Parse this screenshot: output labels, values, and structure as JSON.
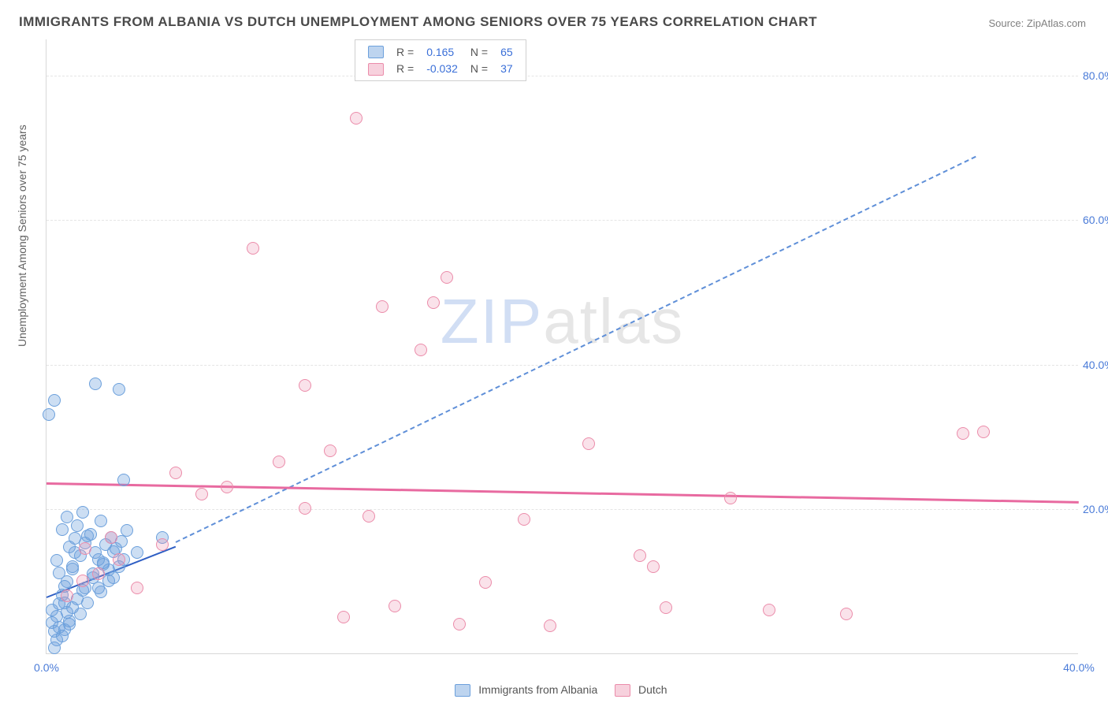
{
  "title": "IMMIGRANTS FROM ALBANIA VS DUTCH UNEMPLOYMENT AMONG SENIORS OVER 75 YEARS CORRELATION CHART",
  "source": "Source: ZipAtlas.com",
  "ylabel": "Unemployment Among Seniors over 75 years",
  "watermark_zip": "ZIP",
  "watermark_atlas": "atlas",
  "chart": {
    "type": "scatter",
    "background_color": "#ffffff",
    "grid_color": "#e5e5e5",
    "axis_color": "#d8d8d8",
    "tick_color": "#4a7bd8",
    "label_color": "#606060",
    "title_color": "#4a4a4a",
    "title_fontsize": 17,
    "label_fontsize": 14,
    "tick_fontsize": 14,
    "xlim": [
      0,
      40
    ],
    "ylim": [
      0,
      85
    ],
    "xticks": [
      0.0,
      40.0
    ],
    "xtick_labels": [
      "0.0%",
      "40.0%"
    ],
    "yticks": [
      20.0,
      40.0,
      60.0,
      80.0
    ],
    "ytick_labels": [
      "20.0%",
      "40.0%",
      "60.0%",
      "80.0%"
    ],
    "marker_radius": 8,
    "series": [
      {
        "name": "Immigrants from Albania",
        "key": "blue",
        "fill": "rgba(108,160,220,0.35)",
        "stroke": "#6ca0dc",
        "R": "0.165",
        "N": "65",
        "points": [
          [
            0.3,
            0.8
          ],
          [
            0.4,
            1.8
          ],
          [
            0.6,
            2.4
          ],
          [
            0.3,
            3.0
          ],
          [
            0.5,
            3.6
          ],
          [
            0.2,
            4.2
          ],
          [
            0.7,
            3.3
          ],
          [
            0.9,
            4.5
          ],
          [
            0.4,
            5.1
          ],
          [
            0.8,
            5.7
          ],
          [
            1.0,
            6.3
          ],
          [
            0.5,
            6.9
          ],
          [
            0.9,
            4.0
          ],
          [
            1.2,
            7.5
          ],
          [
            0.6,
            8.1
          ],
          [
            1.4,
            8.7
          ],
          [
            0.7,
            9.3
          ],
          [
            1.6,
            7.0
          ],
          [
            0.8,
            9.9
          ],
          [
            1.8,
            10.5
          ],
          [
            0.5,
            11.1
          ],
          [
            2.0,
            9.0
          ],
          [
            1.0,
            11.7
          ],
          [
            2.2,
            12.3
          ],
          [
            0.4,
            12.9
          ],
          [
            2.4,
            10.0
          ],
          [
            1.3,
            13.5
          ],
          [
            2.6,
            14.1
          ],
          [
            0.9,
            14.7
          ],
          [
            2.8,
            12.0
          ],
          [
            1.5,
            15.3
          ],
          [
            3.0,
            13.0
          ],
          [
            1.1,
            15.9
          ],
          [
            1.7,
            16.5
          ],
          [
            0.6,
            17.1
          ],
          [
            1.9,
            14.0
          ],
          [
            1.2,
            17.7
          ],
          [
            2.1,
            18.3
          ],
          [
            0.8,
            18.9
          ],
          [
            2.3,
            15.0
          ],
          [
            1.4,
            19.5
          ],
          [
            2.5,
            16.0
          ],
          [
            1.6,
            16.2
          ],
          [
            1.0,
            12.0
          ],
          [
            2.7,
            14.5
          ],
          [
            1.8,
            11.0
          ],
          [
            2.0,
            13.0
          ],
          [
            2.9,
            15.5
          ],
          [
            2.2,
            12.5
          ],
          [
            3.1,
            17.0
          ],
          [
            2.4,
            11.5
          ],
          [
            3.5,
            14.0
          ],
          [
            2.6,
            10.5
          ],
          [
            4.5,
            16.0
          ],
          [
            0.1,
            33.0
          ],
          [
            3.0,
            24.0
          ],
          [
            2.8,
            36.5
          ],
          [
            1.9,
            37.3
          ],
          [
            0.3,
            35.0
          ],
          [
            1.1,
            14.0
          ],
          [
            1.5,
            9.0
          ],
          [
            0.7,
            7.0
          ],
          [
            2.1,
            8.5
          ],
          [
            0.2,
            6.0
          ],
          [
            1.3,
            5.5
          ]
        ],
        "trend": {
          "slope": 1.4,
          "intercept": 8.0,
          "x0": 0.0,
          "x1": 5.0,
          "color": "#2f5fc4",
          "width": 2.5,
          "dash": false
        },
        "extrap": {
          "slope": 1.72,
          "intercept": 7.0,
          "x0": 5.0,
          "x1": 36.0,
          "color": "#5f8fd8",
          "width": 2,
          "dash": true
        }
      },
      {
        "name": "Dutch",
        "key": "pink",
        "fill": "rgba(235,140,170,0.25)",
        "stroke": "#eb8caa",
        "R": "-0.032",
        "N": "37",
        "points": [
          [
            0.8,
            8.0
          ],
          [
            1.4,
            10.0
          ],
          [
            2.0,
            11.0
          ],
          [
            2.8,
            13.0
          ],
          [
            2.5,
            16.0
          ],
          [
            1.5,
            14.5
          ],
          [
            3.5,
            9.0
          ],
          [
            4.5,
            15.0
          ],
          [
            5.0,
            25.0
          ],
          [
            6.0,
            22.0
          ],
          [
            7.0,
            23.0
          ],
          [
            8.0,
            56.0
          ],
          [
            9.0,
            26.5
          ],
          [
            10.0,
            37.0
          ],
          [
            11.0,
            28.0
          ],
          [
            11.5,
            5.0
          ],
          [
            10.0,
            20.0
          ],
          [
            12.0,
            74.0
          ],
          [
            13.0,
            48.0
          ],
          [
            14.5,
            42.0
          ],
          [
            15.0,
            48.5
          ],
          [
            15.5,
            52.0
          ],
          [
            13.5,
            6.5
          ],
          [
            12.5,
            19.0
          ],
          [
            16.0,
            4.0
          ],
          [
            17.0,
            9.8
          ],
          [
            18.5,
            18.5
          ],
          [
            19.5,
            3.8
          ],
          [
            21.0,
            29.0
          ],
          [
            23.0,
            13.5
          ],
          [
            23.5,
            12.0
          ],
          [
            24.0,
            6.3
          ],
          [
            26.5,
            21.5
          ],
          [
            28.0,
            6.0
          ],
          [
            31.0,
            5.5
          ],
          [
            35.5,
            30.4
          ],
          [
            36.3,
            30.6
          ]
        ],
        "trend": {
          "slope": -0.065,
          "intercept": 23.8,
          "x0": 0.0,
          "x1": 40.0,
          "color": "#e86aa0",
          "width": 3,
          "dash": false
        }
      }
    ]
  },
  "legend_top": {
    "r_label": "R =",
    "n_label": "N ="
  },
  "legend_bottom": {
    "series1": "Immigrants from Albania",
    "series2": "Dutch"
  }
}
